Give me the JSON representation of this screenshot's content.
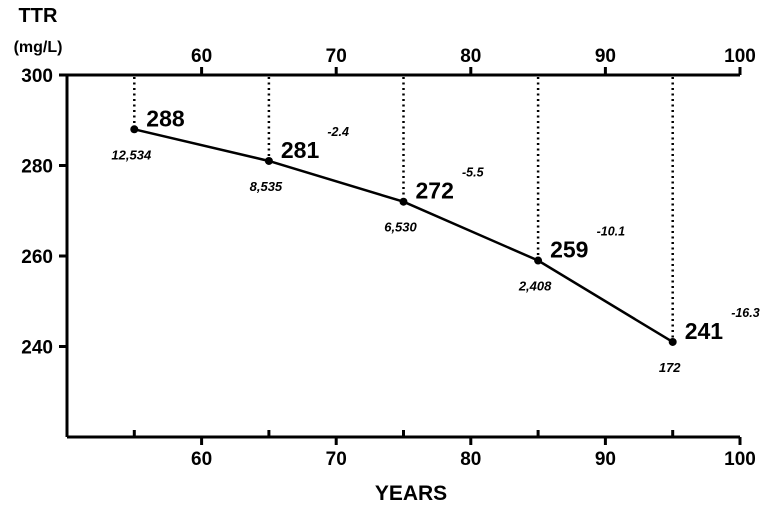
{
  "chart_data": {
    "type": "line",
    "ylabel_line1": "TTR",
    "ylabel_line2": "(mg/L)",
    "xlabel": "YEARS",
    "xlim": [
      50,
      100
    ],
    "ylim": [
      220,
      300
    ],
    "x_ticks": [
      60,
      70,
      80,
      90,
      100
    ],
    "y_ticks": [
      240,
      260,
      280,
      300
    ],
    "grid": false,
    "series": [
      {
        "x": [
          55,
          65,
          75,
          85,
          95
        ],
        "values": [
          288,
          281,
          272,
          259,
          241
        ],
        "value_labels": [
          "288",
          "281",
          "272",
          "259",
          "241"
        ],
        "change_labels": [
          "",
          "-2.4",
          "-5.5",
          "-10.1",
          "-16.3"
        ],
        "count_labels": [
          "12,534",
          "8,535",
          "6,530",
          "2,408",
          "172"
        ]
      }
    ]
  }
}
